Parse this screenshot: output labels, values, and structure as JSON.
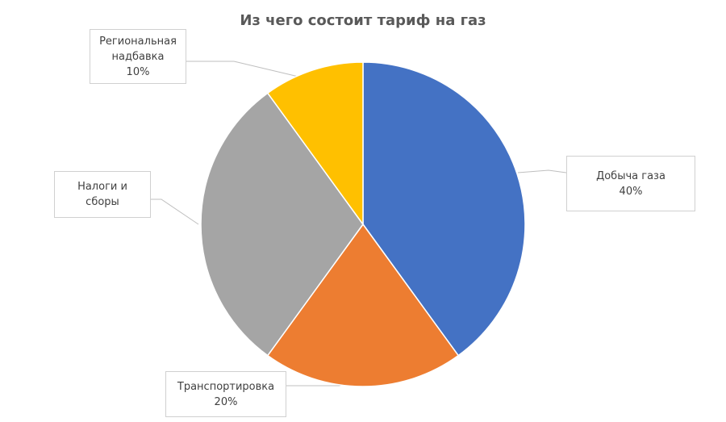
{
  "chart_data": {
    "type": "pie",
    "title": "Из чего состоит тариф на газ",
    "categories": [
      "Добыча газа",
      "Транспортировка",
      "Налоги и сборы",
      "Региональная надбавка"
    ],
    "values": [
      40,
      20,
      30,
      10
    ],
    "value_labels": [
      "40%",
      "20%",
      null,
      "10%"
    ],
    "colors": [
      "#4472c4",
      "#ed7d31",
      "#a5a5a5",
      "#ffc000"
    ]
  }
}
